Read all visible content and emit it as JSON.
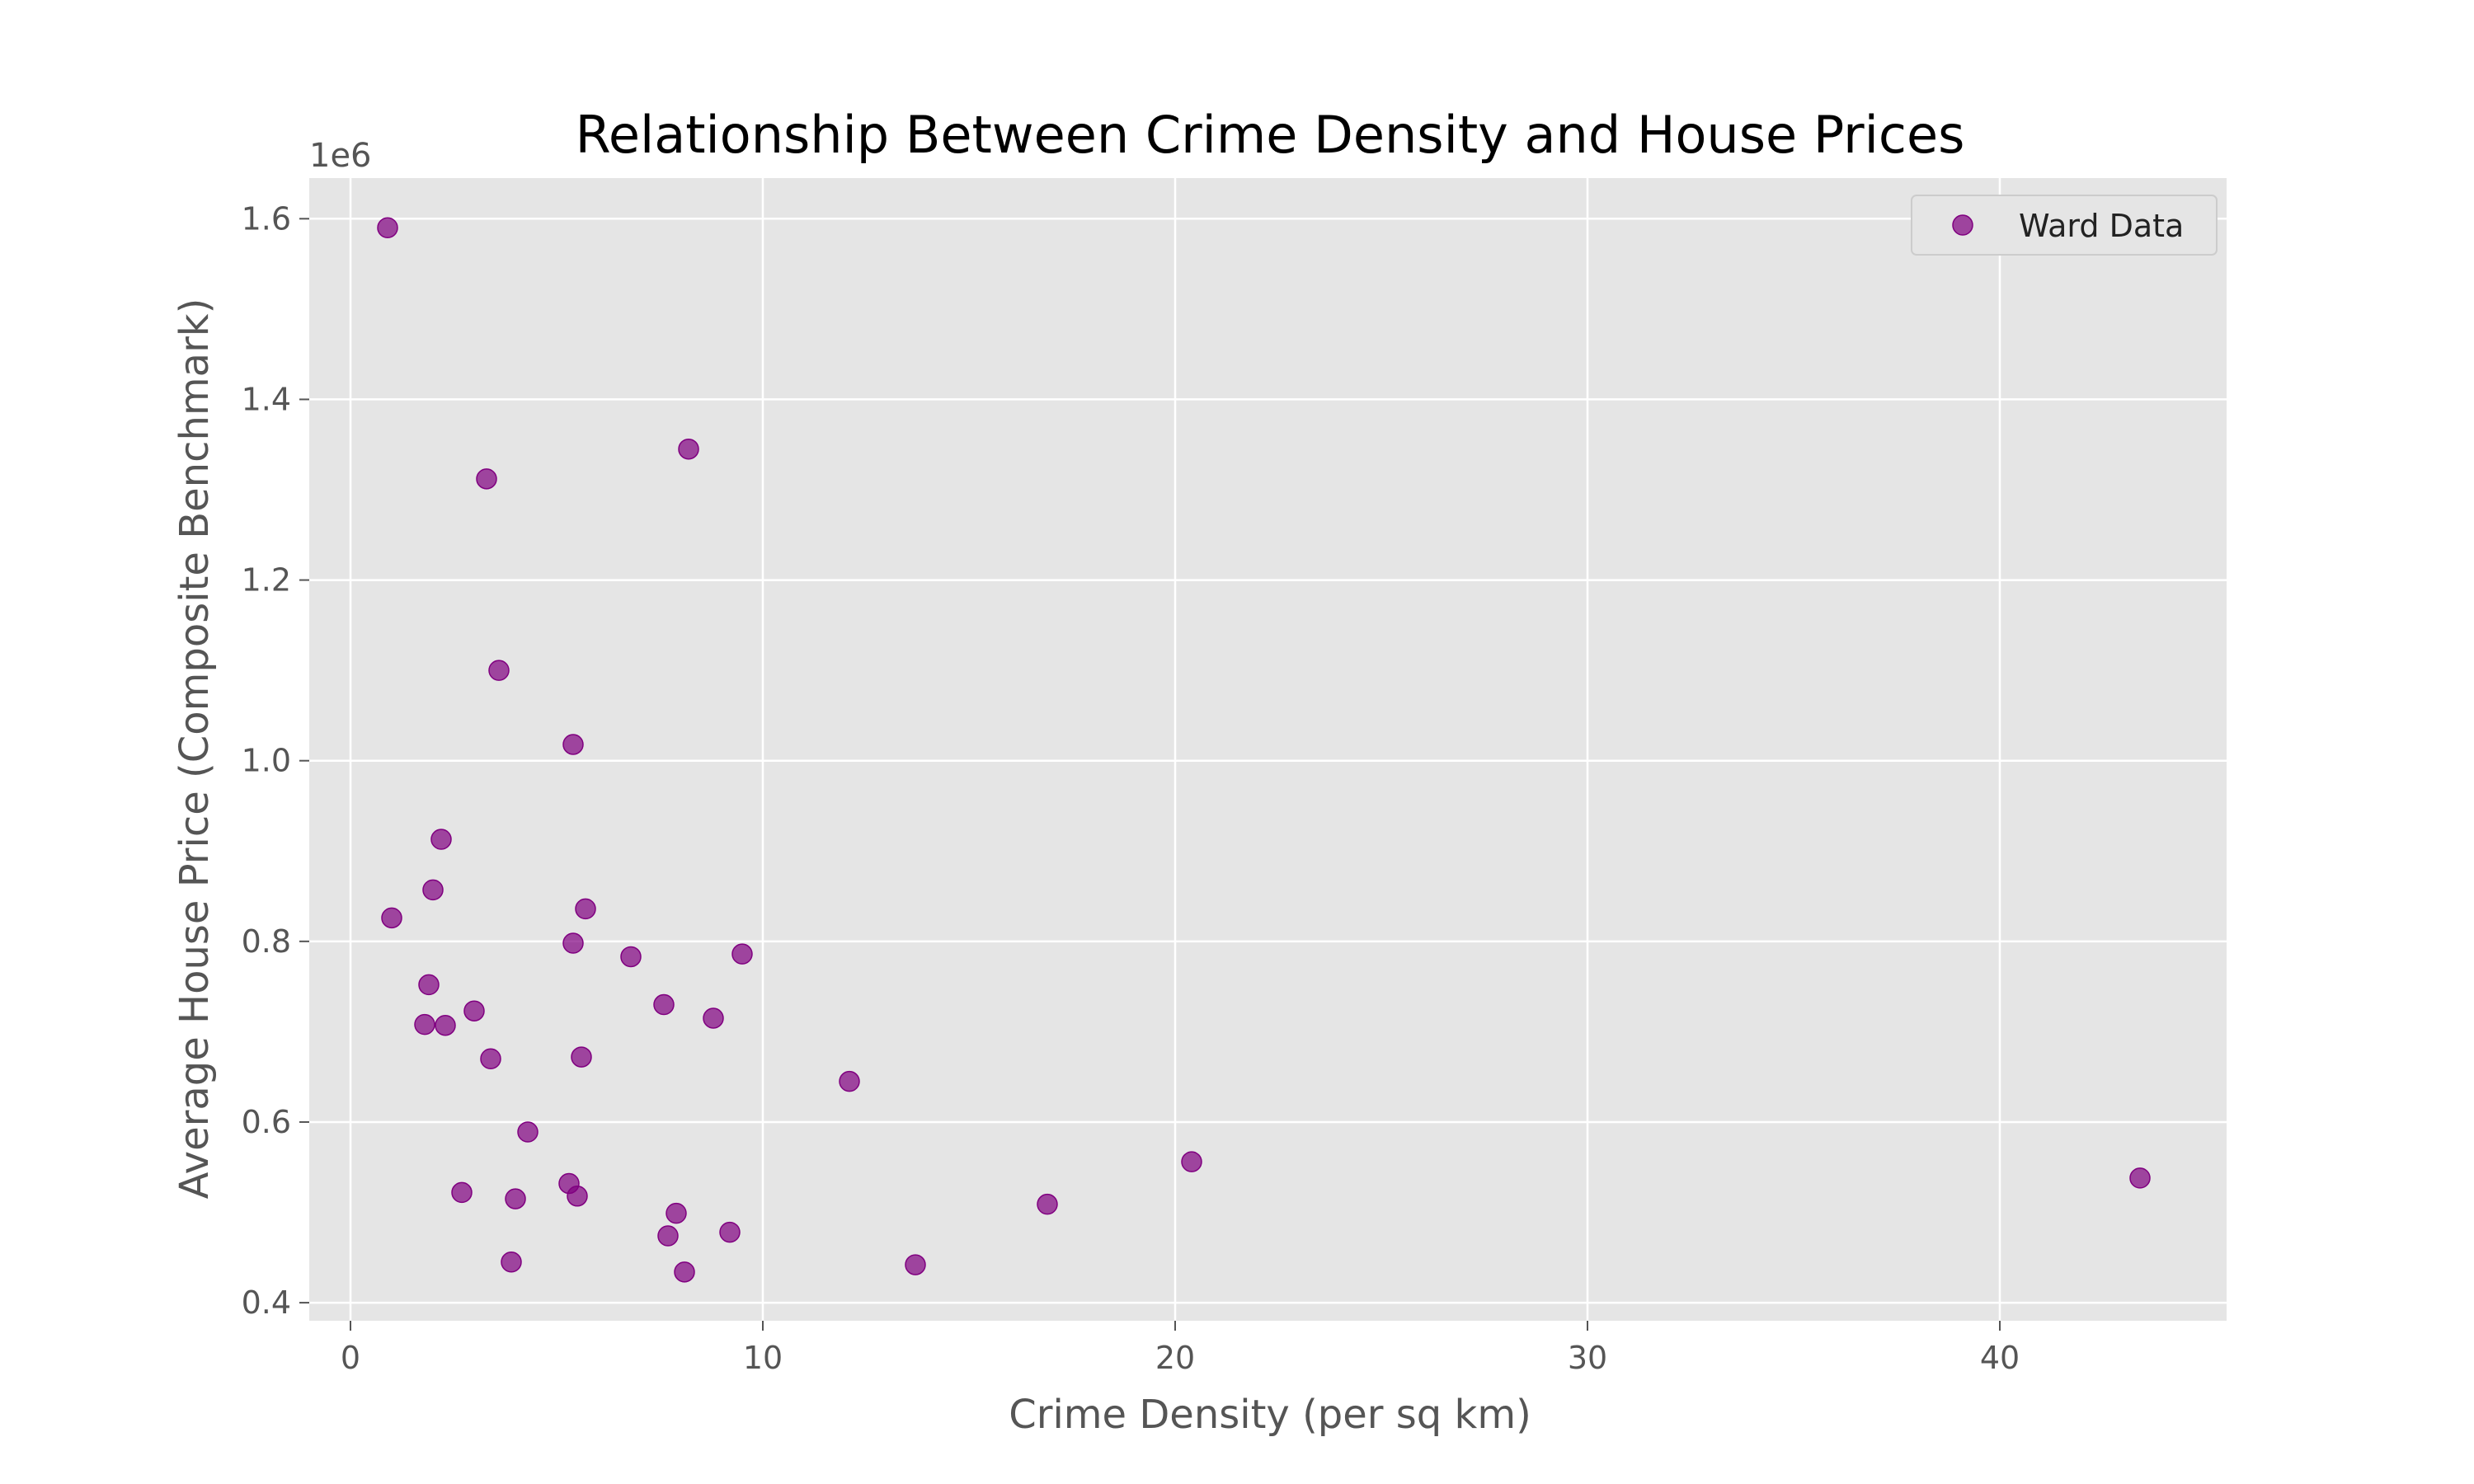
{
  "chart_data": {
    "type": "scatter",
    "title": "Relationship Between Crime Density and House Prices",
    "xlabel": "Crime Density (per sq km)",
    "ylabel": "Average House Price (Composite Benchmark)",
    "y_offset_label": "1e6",
    "xlim": [
      -1.0,
      45.5
    ],
    "ylim": [
      0.38,
      1.645
    ],
    "xticks": [
      0,
      10,
      20,
      30,
      40
    ],
    "xtick_labels": [
      "0",
      "10",
      "20",
      "30",
      "40"
    ],
    "yticks": [
      0.4,
      0.6,
      0.8,
      1.0,
      1.2,
      1.4,
      1.6
    ],
    "ytick_labels": [
      "0.4",
      "0.6",
      "0.8",
      "1.0",
      "1.2",
      "1.4",
      "1.6"
    ],
    "grid": true,
    "legend_position": "top-right",
    "series": [
      {
        "name": "Ward Data",
        "color": "#800080",
        "points": [
          [
            0.9,
            1.59
          ],
          [
            8.2,
            1.345
          ],
          [
            3.3,
            1.312
          ],
          [
            3.6,
            1.1
          ],
          [
            5.4,
            1.018
          ],
          [
            2.2,
            0.913
          ],
          [
            2.0,
            0.857
          ],
          [
            1.0,
            0.826
          ],
          [
            5.7,
            0.836
          ],
          [
            5.4,
            0.798
          ],
          [
            6.8,
            0.783
          ],
          [
            9.5,
            0.786
          ],
          [
            1.9,
            0.752
          ],
          [
            3.0,
            0.723
          ],
          [
            7.6,
            0.73
          ],
          [
            8.8,
            0.715
          ],
          [
            1.8,
            0.708
          ],
          [
            2.3,
            0.707
          ],
          [
            3.4,
            0.67
          ],
          [
            5.6,
            0.672
          ],
          [
            12.1,
            0.645
          ],
          [
            4.3,
            0.589
          ],
          [
            20.4,
            0.556
          ],
          [
            43.4,
            0.538
          ],
          [
            5.3,
            0.532
          ],
          [
            2.7,
            0.522
          ],
          [
            5.5,
            0.518
          ],
          [
            4.0,
            0.515
          ],
          [
            16.9,
            0.509
          ],
          [
            7.9,
            0.499
          ],
          [
            9.2,
            0.478
          ],
          [
            7.7,
            0.474
          ],
          [
            3.9,
            0.445
          ],
          [
            13.7,
            0.442
          ],
          [
            8.1,
            0.434
          ]
        ]
      }
    ]
  }
}
